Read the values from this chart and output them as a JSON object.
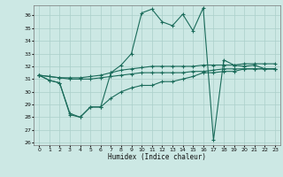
{
  "xlabel": "Humidex (Indice chaleur)",
  "bg_color": "#cce8e4",
  "grid_color": "#aacfca",
  "line_color": "#1a6b5a",
  "xlim": [
    -0.5,
    23.5
  ],
  "ylim": [
    25.8,
    36.8
  ],
  "yticks": [
    26,
    27,
    28,
    29,
    30,
    31,
    32,
    33,
    34,
    35,
    36
  ],
  "xticks": [
    0,
    1,
    2,
    3,
    4,
    5,
    6,
    7,
    8,
    9,
    10,
    11,
    12,
    13,
    14,
    15,
    16,
    17,
    18,
    19,
    20,
    21,
    22,
    23
  ],
  "series": [
    {
      "x": [
        0,
        1,
        2,
        3,
        4,
        5,
        6,
        7,
        8,
        9,
        10,
        11,
        12,
        13,
        14,
        15,
        16,
        17,
        18,
        19,
        20,
        21,
        22,
        23
      ],
      "y": [
        31.3,
        30.9,
        30.7,
        28.2,
        28.0,
        28.8,
        28.8,
        31.5,
        32.1,
        33.0,
        36.2,
        36.5,
        35.5,
        35.2,
        36.1,
        34.8,
        36.6,
        26.2,
        32.5,
        32.1,
        32.0,
        32.1,
        31.8,
        31.8
      ]
    },
    {
      "x": [
        0,
        1,
        2,
        3,
        4,
        5,
        6,
        7,
        8,
        9,
        10,
        11,
        12,
        13,
        14,
        15,
        16,
        17,
        18,
        19,
        20,
        21,
        22,
        23
      ],
      "y": [
        31.3,
        31.2,
        31.1,
        31.1,
        31.1,
        31.2,
        31.3,
        31.5,
        31.7,
        31.8,
        31.9,
        32.0,
        32.0,
        32.0,
        32.0,
        32.0,
        32.1,
        32.1,
        32.1,
        32.1,
        32.2,
        32.2,
        32.2,
        32.2
      ]
    },
    {
      "x": [
        0,
        1,
        2,
        3,
        4,
        5,
        6,
        7,
        8,
        9,
        10,
        11,
        12,
        13,
        14,
        15,
        16,
        17,
        18,
        19,
        20,
        21,
        22,
        23
      ],
      "y": [
        31.3,
        31.2,
        31.1,
        31.0,
        31.0,
        31.0,
        31.1,
        31.2,
        31.3,
        31.4,
        31.5,
        31.5,
        31.5,
        31.5,
        31.5,
        31.6,
        31.6,
        31.7,
        31.8,
        31.8,
        31.8,
        31.8,
        31.8,
        31.8
      ]
    },
    {
      "x": [
        0,
        1,
        2,
        3,
        4,
        5,
        6,
        7,
        8,
        9,
        10,
        11,
        12,
        13,
        14,
        15,
        16,
        17,
        18,
        19,
        20,
        21,
        22,
        23
      ],
      "y": [
        31.3,
        30.9,
        30.7,
        28.3,
        28.0,
        28.8,
        28.8,
        29.5,
        30.0,
        30.3,
        30.5,
        30.5,
        30.8,
        30.8,
        31.0,
        31.2,
        31.5,
        31.5,
        31.6,
        31.6,
        31.8,
        31.8,
        31.8,
        31.8
      ]
    }
  ]
}
